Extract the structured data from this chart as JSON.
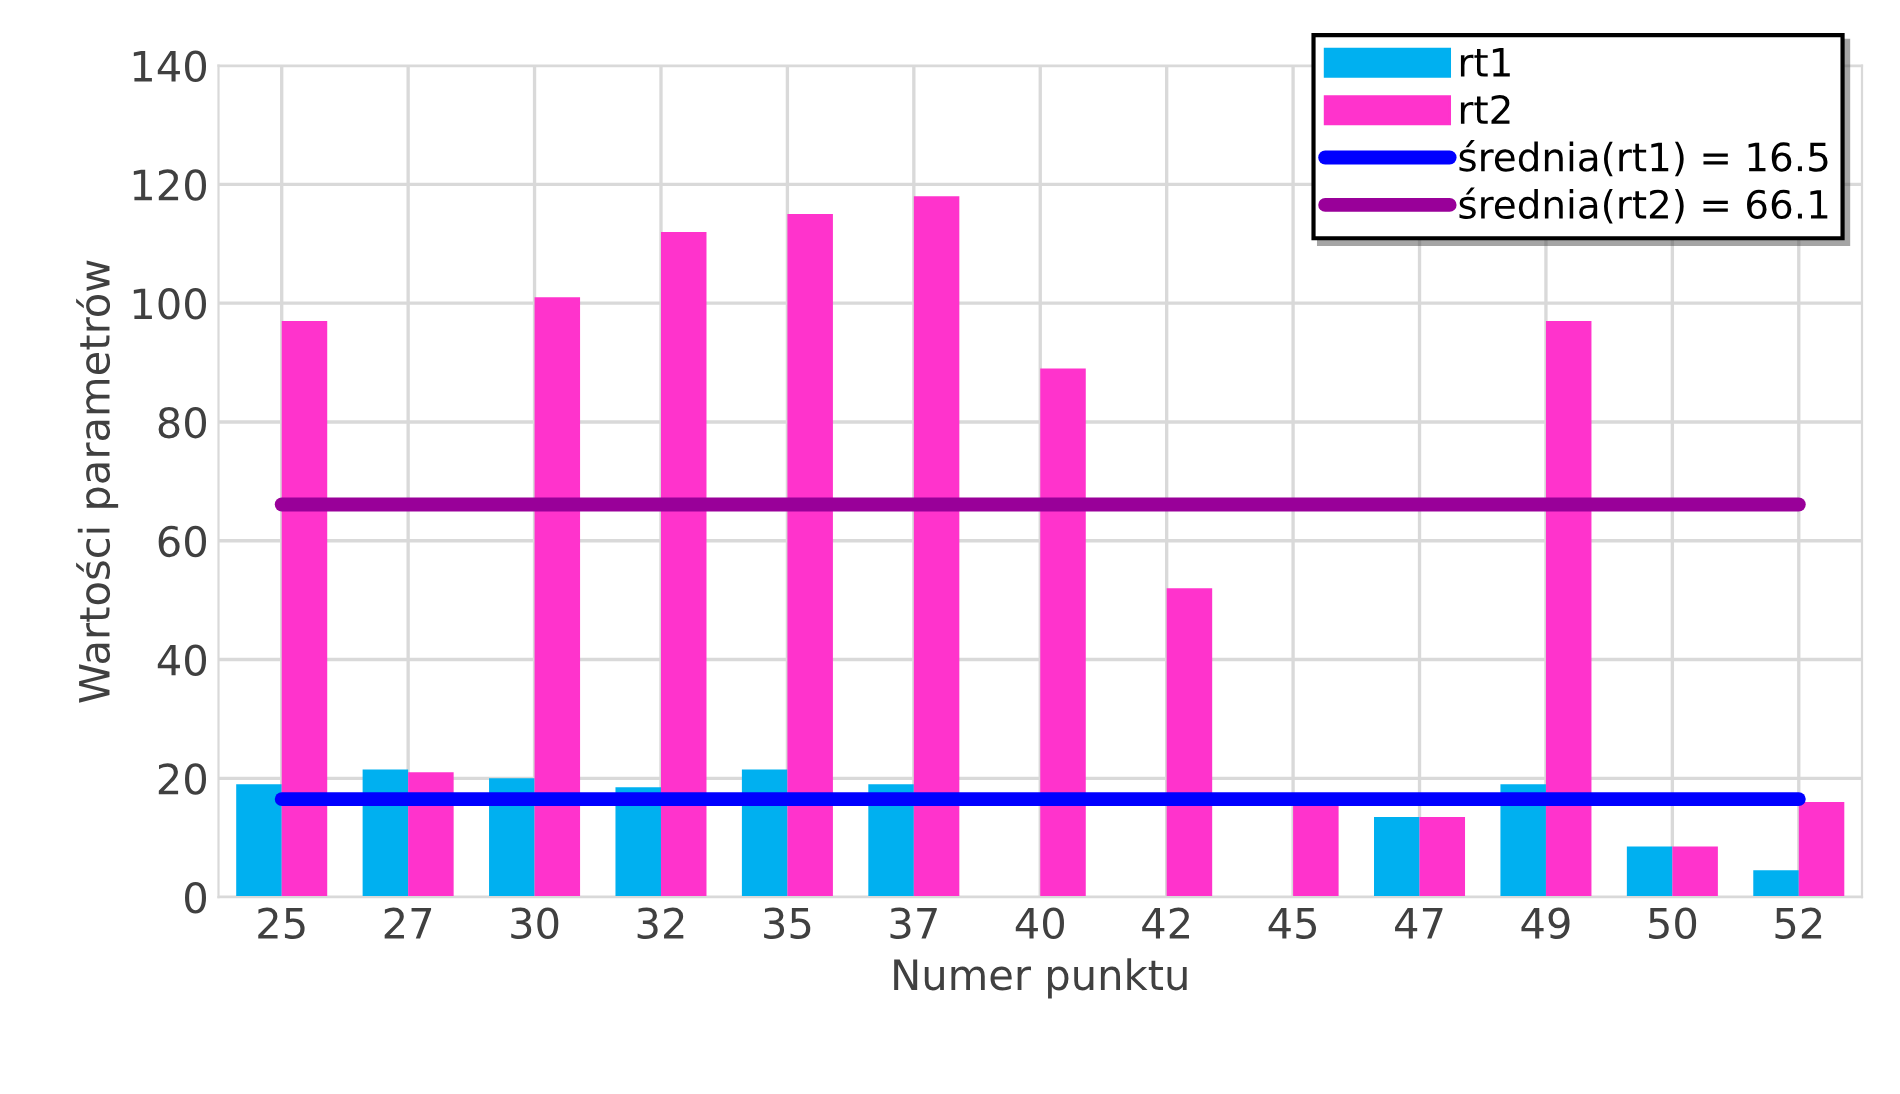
{
  "chart_data": {
    "type": "bar",
    "xlabel": "Numer punktu",
    "ylabel": "Wartości parametrów",
    "categories": [
      "25",
      "27",
      "30",
      "32",
      "35",
      "37",
      "40",
      "42",
      "45",
      "47",
      "49",
      "50",
      "52"
    ],
    "series": [
      {
        "name": "rt1",
        "color": "#00b0f0",
        "values": [
          19,
          21.5,
          20,
          18.5,
          21.5,
          19,
          null,
          null,
          null,
          13.5,
          19,
          8.5,
          4.5
        ]
      },
      {
        "name": "rt2",
        "color": "#ff33cc",
        "values": [
          97,
          21,
          101,
          112,
          115,
          118,
          89,
          52,
          16,
          13.5,
          97,
          8.5,
          16
        ]
      }
    ],
    "ref_lines": [
      {
        "axis": "y",
        "value": 16.5,
        "label": "średnia(rt1) = 16.5",
        "color": "#0000ff"
      },
      {
        "axis": "y",
        "value": 66.1,
        "label": "średnia(rt2) = 66.1",
        "color": "#990099"
      }
    ],
    "ylim": [
      0,
      140
    ],
    "yticks": [
      0,
      20,
      40,
      60,
      80,
      100,
      120,
      140
    ],
    "grid": true,
    "legend": "top right"
  }
}
